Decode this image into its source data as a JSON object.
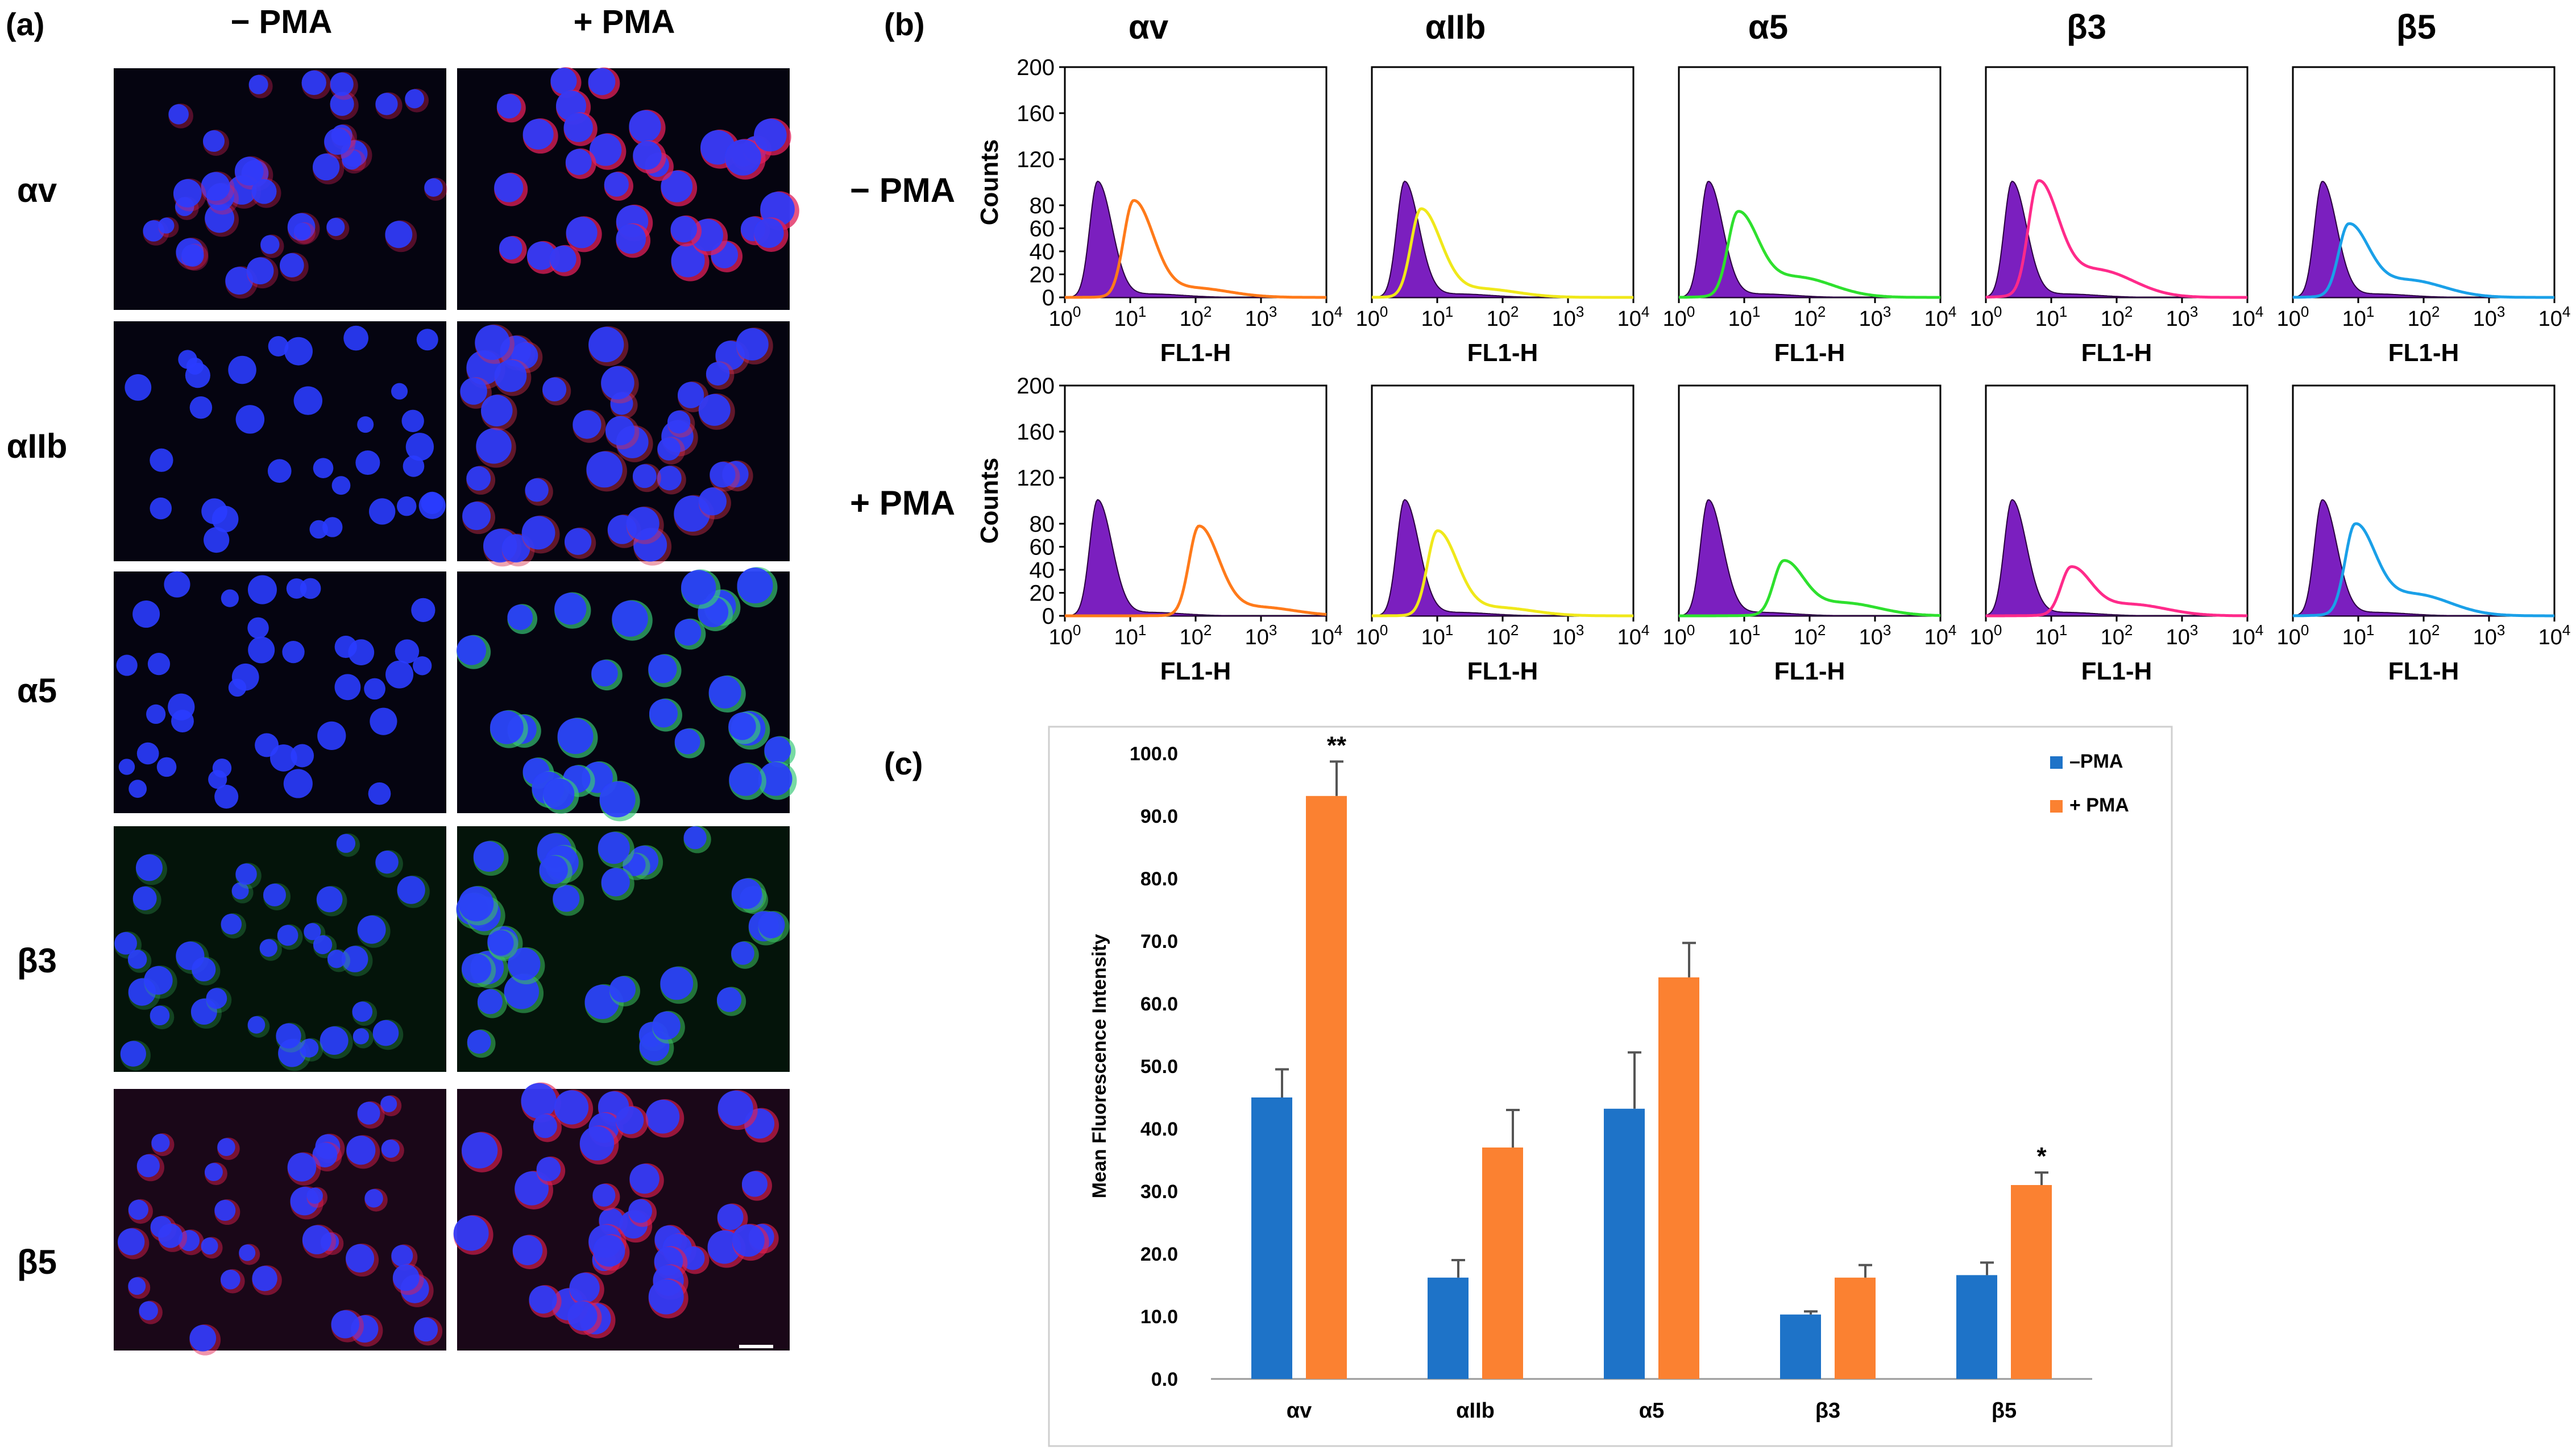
{
  "panel_labels": {
    "a": "(a)",
    "b": "(b)",
    "c": "(c)"
  },
  "conditions": [
    "− PMA",
    "+ PMA"
  ],
  "markers": [
    "αv",
    "αIIb",
    "α5",
    "β3",
    "β5"
  ],
  "microscopy": {
    "stain_colors": [
      "#e0205a",
      "#d8304a",
      "#38c878",
      "#3cc060",
      "#e02050"
    ],
    "nucleus_color": "#2a3cff",
    "intensity_minus": [
      0.45,
      0.1,
      0.15,
      0.35,
      0.6
    ],
    "intensity_plus": [
      0.95,
      0.55,
      0.85,
      0.7,
      0.8
    ]
  },
  "flow": {
    "ylabel": "Counts",
    "xlabel": "FL1-H",
    "ylim": [
      0,
      200
    ],
    "yticks": [
      "0",
      "20",
      "40",
      "60",
      "80",
      "120",
      "160",
      "200"
    ],
    "ytick_values": [
      0,
      20,
      40,
      60,
      80,
      120,
      160,
      200
    ],
    "xticks": [
      {
        "base": "10",
        "exp": "0"
      },
      {
        "base": "10",
        "exp": "1"
      },
      {
        "base": "10",
        "exp": "2"
      },
      {
        "base": "10",
        "exp": "3"
      },
      {
        "base": "10",
        "exp": "4"
      }
    ],
    "isotype_color": "#7b1fbf",
    "colors": [
      "#ff7a1a",
      "#f0e81a",
      "#2ee02e",
      "#ff2a8a",
      "#1aa0e8"
    ],
    "isotype_peak_log": [
      0.5,
      0.5,
      0.45,
      0.4,
      0.45
    ],
    "isotype_peak_count": [
      100,
      100,
      100,
      100,
      100
    ],
    "minus_peak_log": [
      1.05,
      0.75,
      0.9,
      0.8,
      0.85
    ],
    "minus_peak_count": [
      82,
      75,
      70,
      95,
      60
    ],
    "plus_peak_log": [
      2.05,
      1.0,
      1.6,
      1.3,
      0.95
    ],
    "plus_peak_count": [
      76,
      72,
      45,
      40,
      75
    ]
  },
  "chart_data": {
    "type": "bar",
    "categories": [
      "αv",
      "αIIb",
      "α5",
      "β3",
      "β5"
    ],
    "series": [
      {
        "name": "–PMA",
        "color": "#1e73c8",
        "values": [
          45.0,
          16.2,
          43.2,
          10.3,
          16.6
        ],
        "errors": [
          4.5,
          2.8,
          9.0,
          0.5,
          2.0
        ]
      },
      {
        "name": "+ PMA",
        "color": "#fb8131",
        "values": [
          93.2,
          37.0,
          64.2,
          16.2,
          31.0
        ],
        "errors": [
          5.5,
          6.0,
          5.5,
          2.0,
          2.0
        ]
      }
    ],
    "significance": [
      {
        "category": 0,
        "series": 1,
        "mark": "**"
      },
      {
        "category": 4,
        "series": 1,
        "mark": "*"
      }
    ],
    "ylabel": "Mean Fluorescence Intensity",
    "ylim": [
      0,
      100
    ],
    "yticks": [
      "0.0",
      "10.0",
      "20.0",
      "30.0",
      "40.0",
      "50.0",
      "60.0",
      "70.0",
      "80.0",
      "90.0",
      "100.0"
    ],
    "ytick_values": [
      0,
      10,
      20,
      30,
      40,
      50,
      60,
      70,
      80,
      90,
      100
    ],
    "legend_position": "top-right"
  }
}
